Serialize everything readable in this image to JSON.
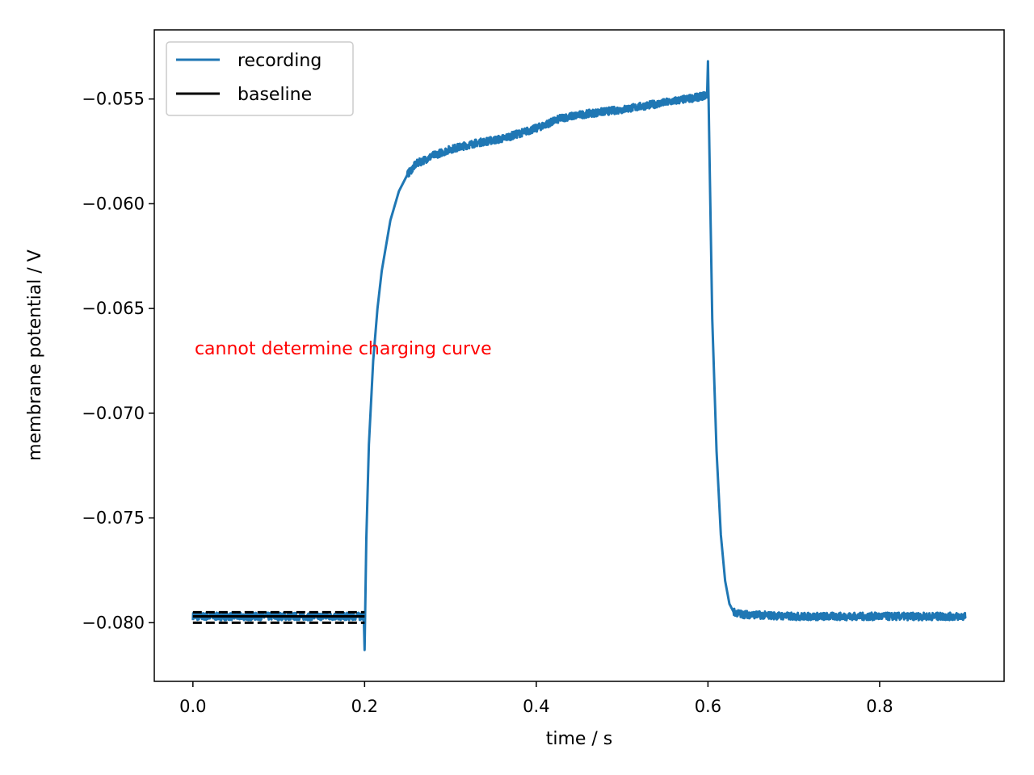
{
  "chart_data": {
    "type": "line",
    "title": "",
    "xlabel": "time / s",
    "ylabel": "membrane potential / V",
    "xlim": [
      -0.045,
      0.945
    ],
    "ylim": [
      -0.0828,
      -0.0517
    ],
    "x_ticks": [
      0.0,
      0.2,
      0.4,
      0.6,
      0.8
    ],
    "x_tick_labels": [
      "0.0",
      "0.2",
      "0.4",
      "0.6",
      "0.8"
    ],
    "y_ticks": [
      -0.055,
      -0.06,
      -0.065,
      -0.07,
      -0.075,
      -0.08
    ],
    "y_tick_labels": [
      "−0.055",
      "−0.060",
      "−0.065",
      "−0.070",
      "−0.075",
      "−0.080"
    ],
    "grid": false,
    "legend_position": "upper left",
    "series": [
      {
        "name": "recording",
        "color": "#1f77b4",
        "x": [
          0.0,
          0.05,
          0.1,
          0.15,
          0.199,
          0.2,
          0.202,
          0.205,
          0.21,
          0.215,
          0.22,
          0.23,
          0.24,
          0.25,
          0.26,
          0.28,
          0.3,
          0.33,
          0.36,
          0.4,
          0.43,
          0.46,
          0.5,
          0.53,
          0.56,
          0.59,
          0.599,
          0.6,
          0.602,
          0.605,
          0.61,
          0.615,
          0.62,
          0.625,
          0.63,
          0.64,
          0.7,
          0.8,
          0.9
        ],
        "y": [
          -0.0797,
          -0.0797,
          -0.0797,
          -0.0797,
          -0.0797,
          -0.0813,
          -0.076,
          -0.0715,
          -0.0675,
          -0.065,
          -0.0632,
          -0.0608,
          -0.0594,
          -0.0586,
          -0.0581,
          -0.0577,
          -0.0574,
          -0.0571,
          -0.0569,
          -0.0564,
          -0.0559,
          -0.0557,
          -0.0555,
          -0.0553,
          -0.0551,
          -0.0549,
          -0.0548,
          -0.0532,
          -0.0582,
          -0.0655,
          -0.0718,
          -0.0758,
          -0.078,
          -0.0791,
          -0.0795,
          -0.0796,
          -0.0797,
          -0.0797,
          -0.0797
        ]
      },
      {
        "name": "baseline",
        "color": "#000000",
        "x": [
          0.0,
          0.2
        ],
        "y": [
          -0.0797,
          -0.0797
        ]
      }
    ],
    "baseline_band": {
      "x": [
        0.0,
        0.2
      ],
      "upper": -0.0795,
      "lower": -0.08,
      "style": "dashed",
      "color": "#000000"
    },
    "annotations": [
      {
        "text": "cannot determine charging curve",
        "x": 0.002,
        "y": -0.0672,
        "color": "#ff0000"
      }
    ]
  }
}
